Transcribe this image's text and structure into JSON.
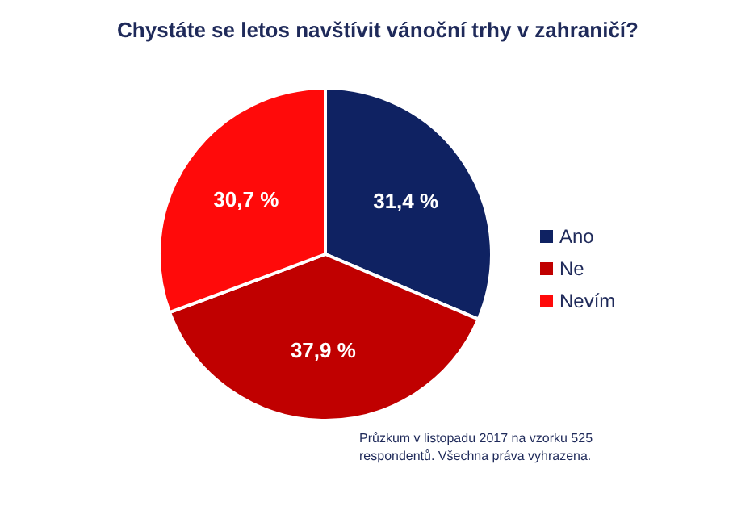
{
  "chart_data": {
    "type": "pie",
    "title": "Chystáte se letos navštívit vánoční trhy v zahraničí?",
    "categories": [
      "Ano",
      "Ne",
      "Nevím"
    ],
    "values": [
      31.4,
      37.9,
      30.7
    ],
    "colors": [
      "#0f2262",
      "#c00000",
      "#ff0a0a"
    ],
    "value_labels": [
      "31,4 %",
      "37,9 %",
      "30,7 %"
    ],
    "legend": "right",
    "annotations": [
      "Průzkum v listopadu 2017 na vzorku 525 respondentů. Všechna práva vyhrazena."
    ]
  }
}
